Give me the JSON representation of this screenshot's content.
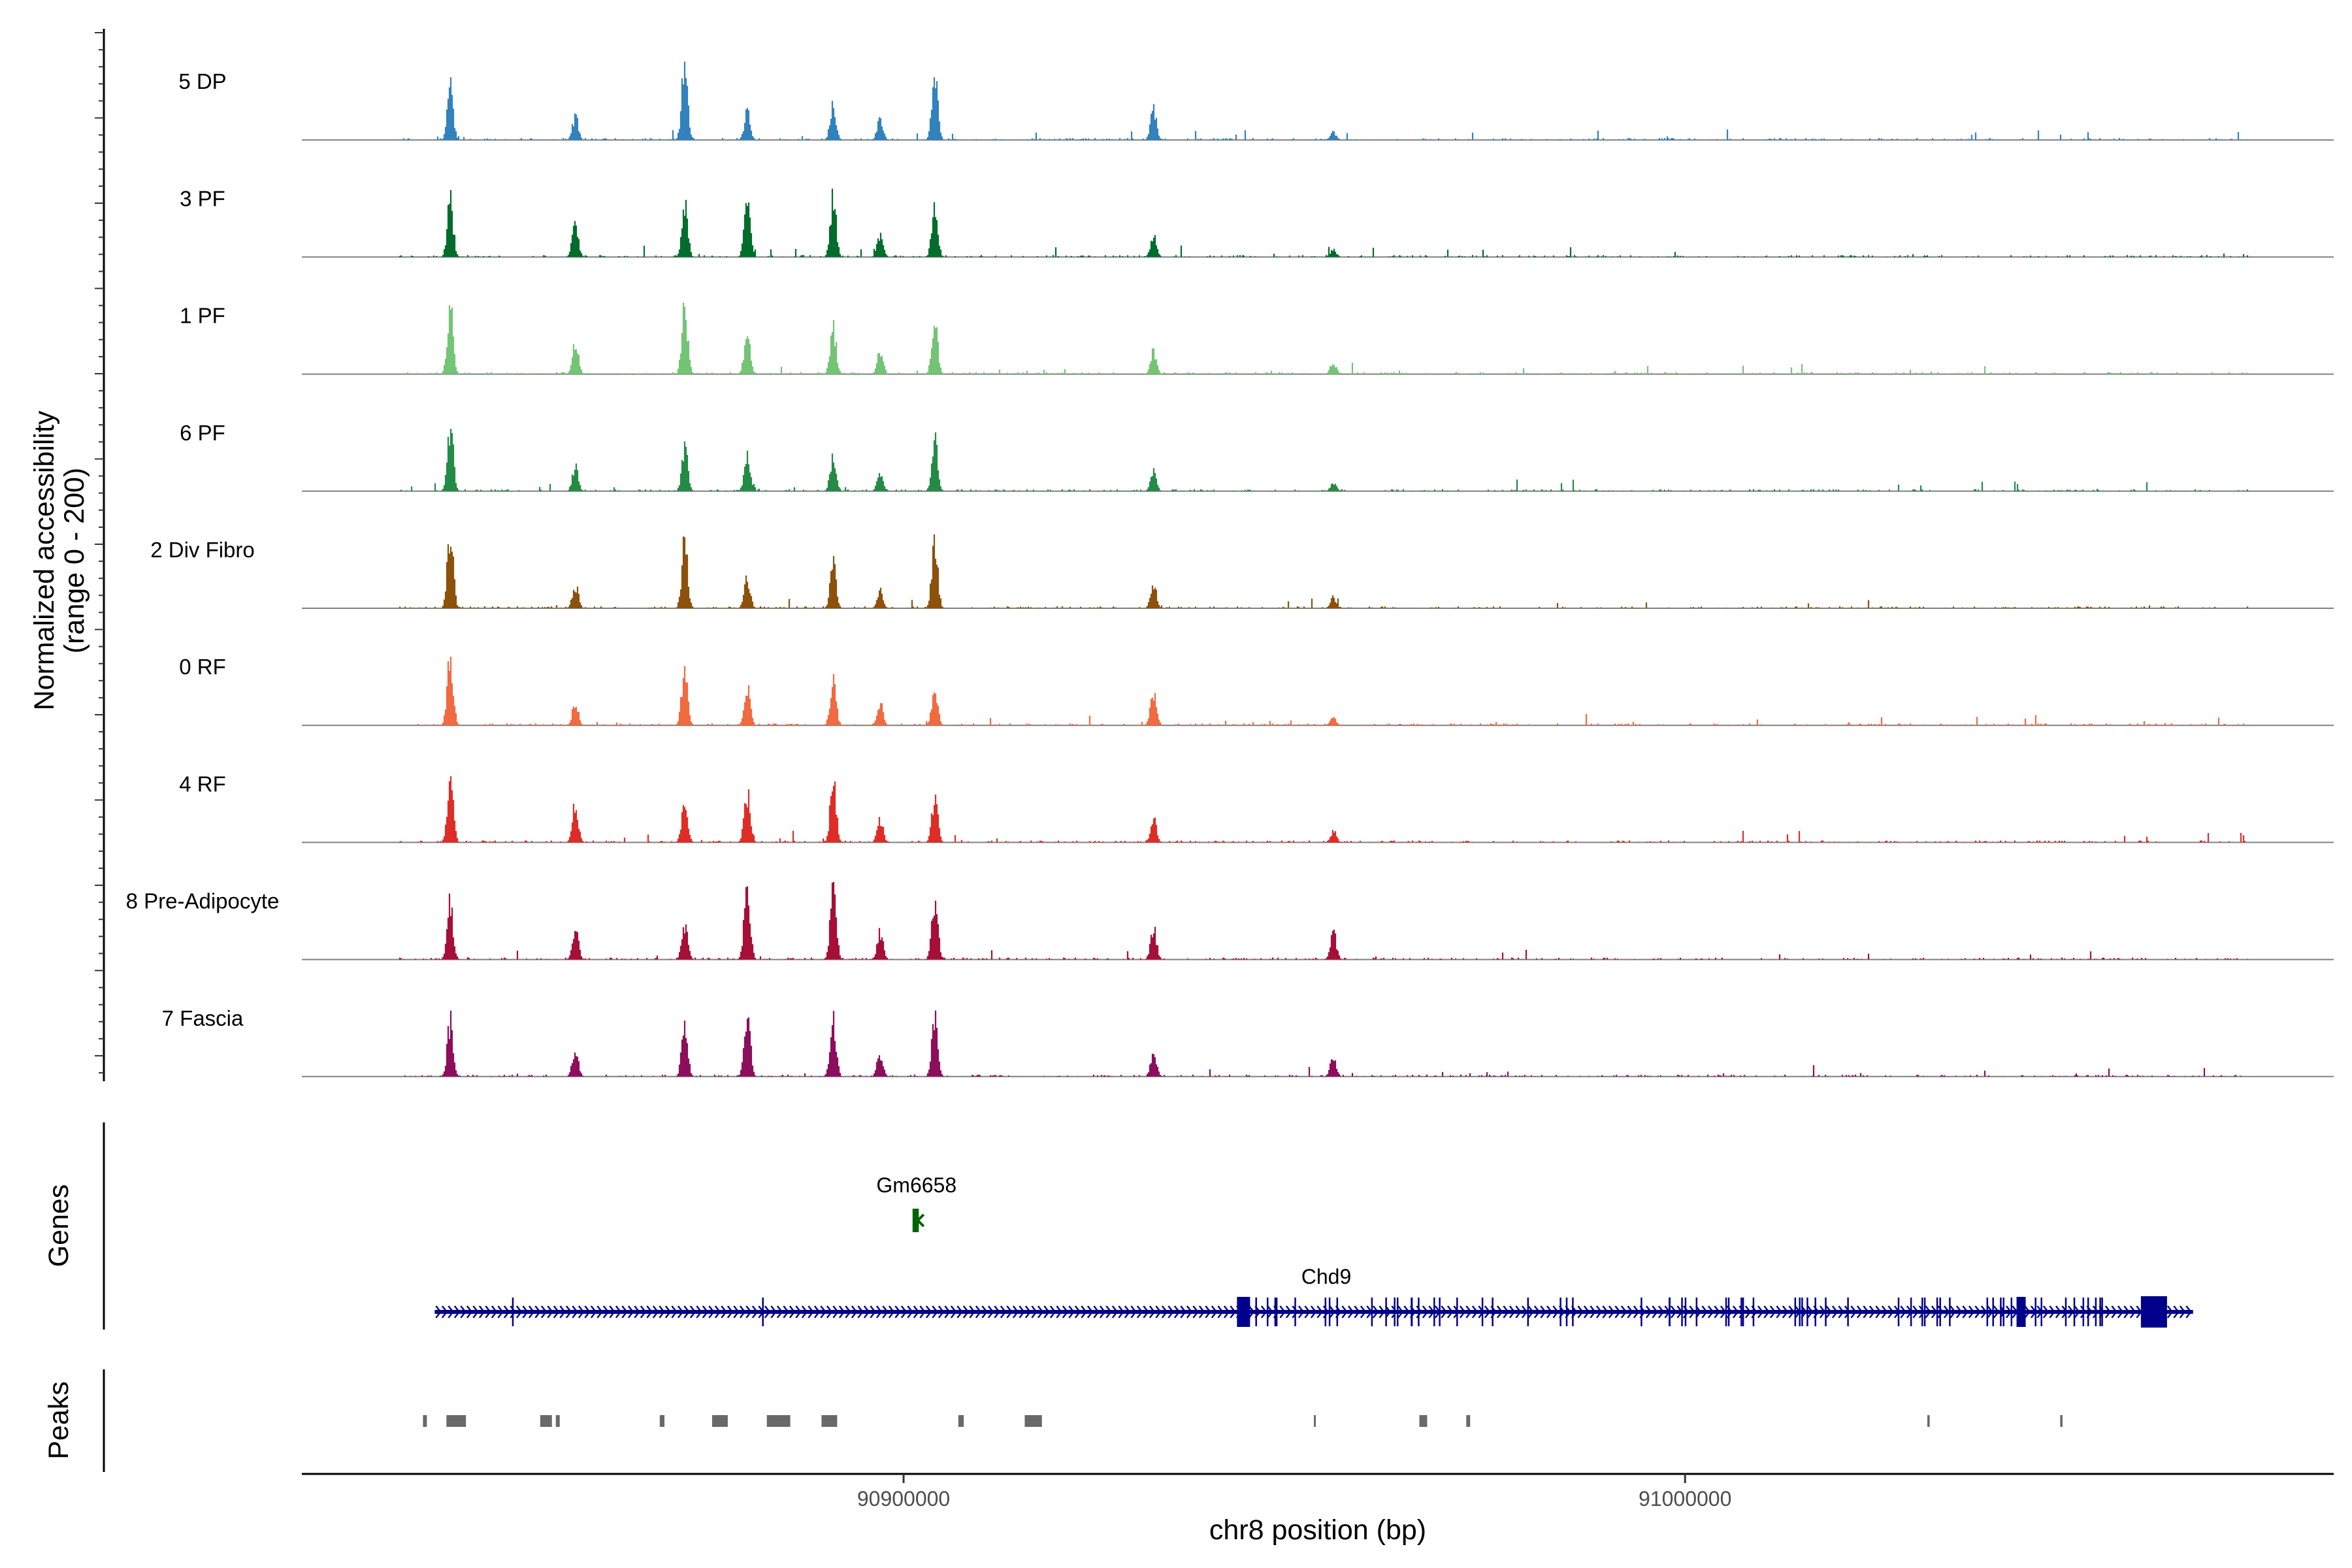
{
  "chart_data": {
    "type": "coverage",
    "chromosome": "chr8",
    "region": {
      "start": 90823000,
      "end": 91083000
    },
    "y_axis_title": [
      "Normalized accessibility",
      "(range 0 - 200)"
    ],
    "x_axis_title": "chr8 position (bp)",
    "x_ticks": [
      {
        "value": 90900000,
        "label": "90900000"
      },
      {
        "value": 91000000,
        "label": "91000000"
      }
    ],
    "tracks": [
      {
        "name": "5 DP",
        "color": "#3182bd"
      },
      {
        "name": "3 PF",
        "color": "#006d2c"
      },
      {
        "name": "1 PF",
        "color": "#74c476"
      },
      {
        "name": "6 PF",
        "color": "#238b45"
      },
      {
        "name": "2 Div Fibro",
        "color": "#8c510a"
      },
      {
        "name": "0 RF",
        "color": "#f16a40"
      },
      {
        "name": "4 RF",
        "color": "#de2d26"
      },
      {
        "name": "8 Pre-Adipocyte",
        "color": "#a50f38"
      },
      {
        "name": "7 Fascia",
        "color": "#8c0e5c"
      }
    ],
    "peak_centers_bp": [
      90842000,
      90858000,
      90872000,
      90880000,
      90891000,
      90897000,
      90904000,
      90932000,
      90955000
    ],
    "signal_heights": [
      [
        0.65,
        0.3,
        1.0,
        0.35,
        0.45,
        0.25,
        0.8,
        0.4,
        0.1
      ],
      [
        0.7,
        0.45,
        0.7,
        0.75,
        0.75,
        0.3,
        0.65,
        0.3,
        0.1
      ],
      [
        0.85,
        0.4,
        0.85,
        0.55,
        0.6,
        0.3,
        0.7,
        0.3,
        0.15
      ],
      [
        0.85,
        0.3,
        0.55,
        0.45,
        0.45,
        0.2,
        0.65,
        0.25,
        0.1
      ],
      [
        0.95,
        0.3,
        0.85,
        0.4,
        0.55,
        0.25,
        0.85,
        0.3,
        0.15
      ],
      [
        0.9,
        0.3,
        0.75,
        0.5,
        0.55,
        0.3,
        0.45,
        0.45,
        0.1
      ],
      [
        0.85,
        0.5,
        0.55,
        0.65,
        0.8,
        0.3,
        0.6,
        0.3,
        0.15
      ],
      [
        0.7,
        0.4,
        0.45,
        0.95,
        0.95,
        0.35,
        0.8,
        0.4,
        0.35
      ],
      [
        0.7,
        0.35,
        0.65,
        0.85,
        0.7,
        0.3,
        0.75,
        0.3,
        0.25
      ]
    ],
    "genes_title": "Genes",
    "genes": [
      {
        "name": "Gm6658",
        "color": "#006400",
        "start": 90901400,
        "end": 90902200,
        "strand": "-"
      },
      {
        "name": "Chd9",
        "color": "#00008b",
        "start": 90840000,
        "end": 91065000,
        "strand": "+",
        "exons": [
          90943500,
          90968000,
          91038000,
          91060000
        ]
      }
    ],
    "peaks_title": "Peaks",
    "peaks_color": "#696969",
    "peaks": [
      [
        90838500,
        90839000
      ],
      [
        90841500,
        90844000
      ],
      [
        90853500,
        90855000
      ],
      [
        90855500,
        90856000
      ],
      [
        90868800,
        90869400
      ],
      [
        90875500,
        90877500
      ],
      [
        90882500,
        90885500
      ],
      [
        90889500,
        90891500
      ],
      [
        90907000,
        90907700
      ],
      [
        90915500,
        90917700
      ],
      [
        90952500,
        90952600
      ],
      [
        90966000,
        90967000
      ],
      [
        90972000,
        90972500
      ],
      [
        91031000,
        91031300
      ],
      [
        91048000,
        91048300
      ]
    ]
  }
}
